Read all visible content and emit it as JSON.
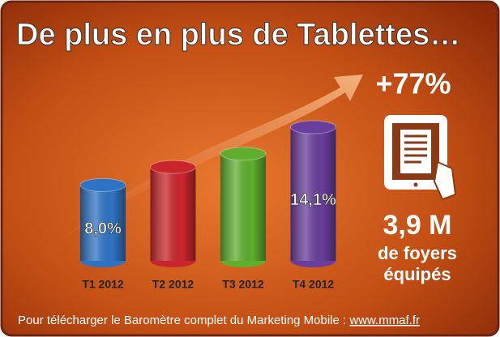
{
  "chart_data": {
    "type": "cylinder-bar",
    "title": "De plus en plus de Tablettes…",
    "categories": [
      "T1 2012",
      "T2 2012",
      "T3 2012",
      "T4 2012"
    ],
    "values": [
      8.0,
      9.9,
      11.3,
      14.1
    ],
    "value_labels": [
      "8,0%",
      null,
      null,
      "14,1%"
    ],
    "colors": [
      "#2f74c4",
      "#c8262c",
      "#5fae2e",
      "#6a3e9c"
    ],
    "annotations": [
      "+77%",
      "3,9 M",
      "de foyers",
      "équipés"
    ],
    "footer_text": "Pour télécharger le Baromètre complet du Marketing Mobile : ",
    "footer_link": "www.mmaf.fr"
  }
}
